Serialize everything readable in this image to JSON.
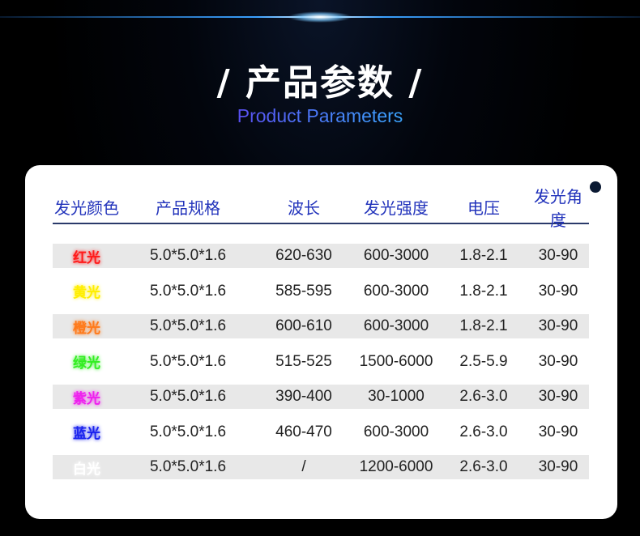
{
  "header": {
    "title": "/ 产品参数 /",
    "subtitle": "Product Parameters"
  },
  "table": {
    "columns": [
      "发光颜色",
      "产品规格",
      "波长",
      "发光强度",
      "电压",
      "发光角度"
    ],
    "rows": [
      {
        "color_name": "红光",
        "color": "#ff1a1a",
        "spec": "5.0*5.0*1.6",
        "wavelength": "620-630",
        "intensity": "600-3000",
        "voltage": "1.8-2.1",
        "angle": "30-90"
      },
      {
        "color_name": "黄光",
        "color": "#ffee00",
        "spec": "5.0*5.0*1.6",
        "wavelength": "585-595",
        "intensity": "600-3000",
        "voltage": "1.8-2.1",
        "angle": "30-90"
      },
      {
        "color_name": "橙光",
        "color": "#ff7a1a",
        "spec": "5.0*5.0*1.6",
        "wavelength": "600-610",
        "intensity": "600-3000",
        "voltage": "1.8-2.1",
        "angle": "30-90"
      },
      {
        "color_name": "绿光",
        "color": "#33ee22",
        "spec": "5.0*5.0*1.6",
        "wavelength": "515-525",
        "intensity": "1500-6000",
        "voltage": "2.5-5.9",
        "angle": "30-90"
      },
      {
        "color_name": "紫光",
        "color": "#ee22ee",
        "spec": "5.0*5.0*1.6",
        "wavelength": "390-400",
        "intensity": "30-1000",
        "voltage": "2.6-3.0",
        "angle": "30-90"
      },
      {
        "color_name": "蓝光",
        "color": "#1a22ee",
        "spec": "5.0*5.0*1.6",
        "wavelength": "460-470",
        "intensity": "600-3000",
        "voltage": "2.6-3.0",
        "angle": "30-90"
      },
      {
        "color_name": "白光",
        "color": "#ffffff",
        "spec": "5.0*5.0*1.6",
        "wavelength": "/",
        "intensity": "1200-6000",
        "voltage": "2.6-3.0",
        "angle": "30-90"
      }
    ]
  }
}
